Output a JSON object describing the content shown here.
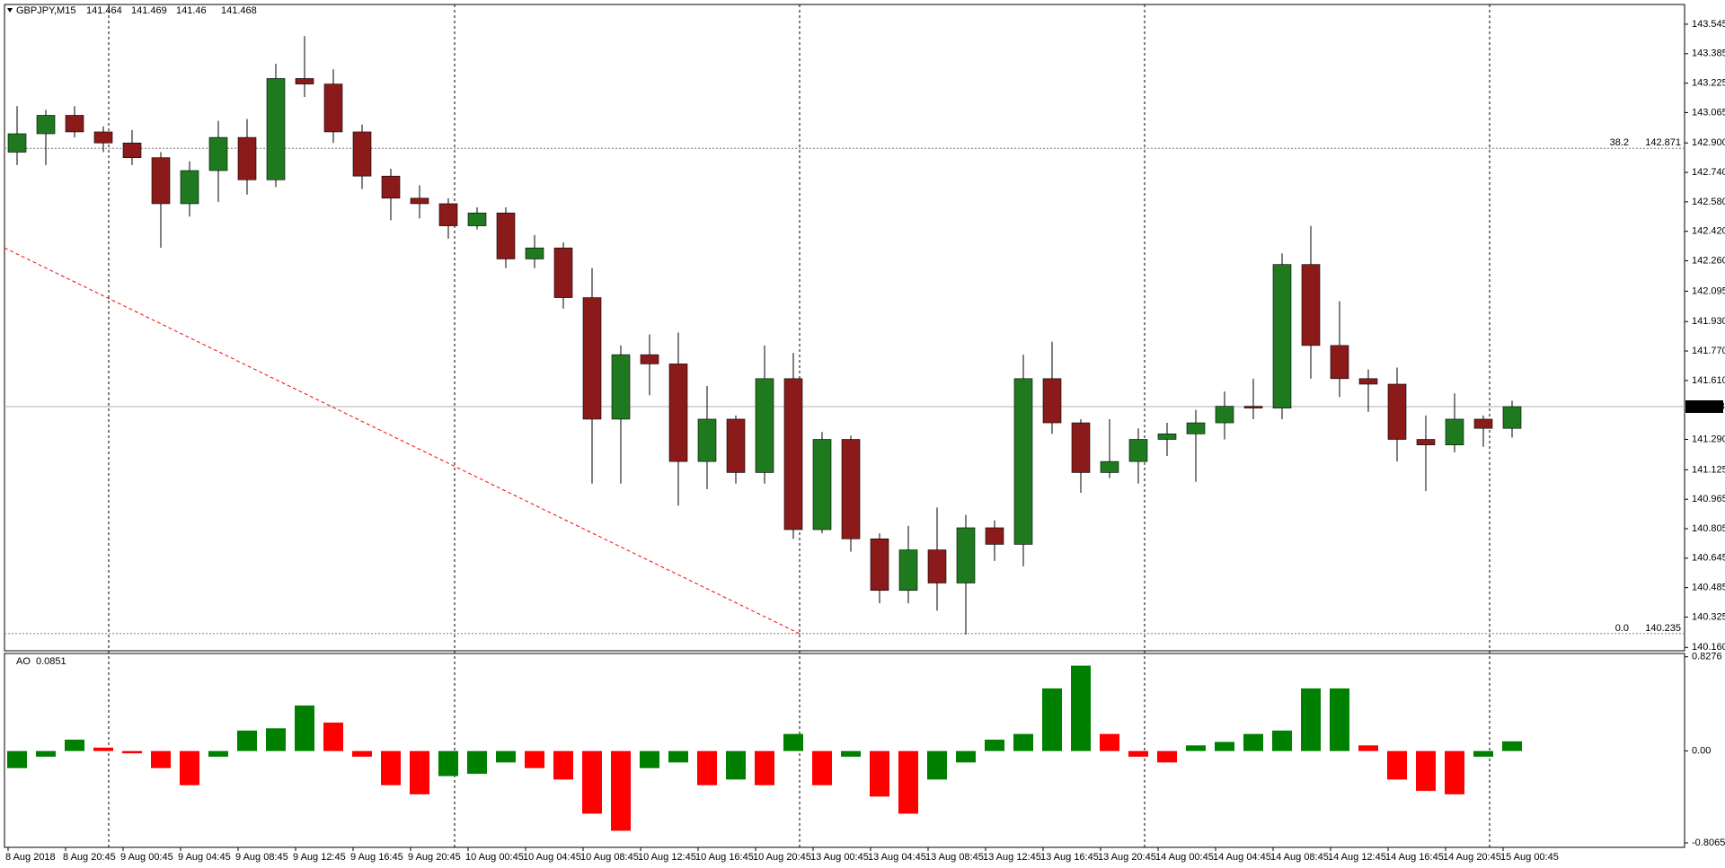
{
  "chart_data": [
    {
      "type": "candlestick",
      "title": "GBPJPY,M15",
      "ohlc": [
        141.464,
        141.469,
        141.46,
        141.468
      ],
      "categories": [
        "8 Aug 2018",
        null,
        "8 Aug 20:45",
        null,
        "9 Aug 00:45",
        null,
        "9 Aug 04:45",
        null,
        "9 Aug 08:45",
        null,
        "9 Aug 12:45",
        null,
        "9 Aug 16:45",
        null,
        "9 Aug 20:45",
        null,
        "10 Aug 00:45",
        null,
        "10 Aug 04:45",
        null,
        "10 Aug 08:45",
        null,
        "10 Aug 12:45",
        null,
        "10 Aug 16:45",
        null,
        "10 Aug 20:45",
        null,
        "13 Aug 00:45",
        null,
        "13 Aug 04:45",
        null,
        "13 Aug 08:45",
        null,
        "13 Aug 12:45",
        null,
        "13 Aug 16:45",
        null,
        "13 Aug 20:45",
        null,
        "14 Aug 00:45",
        null,
        "14 Aug 04:45",
        null,
        "14 Aug 08:45",
        null,
        "14 Aug 12:45",
        null,
        "14 Aug 16:45",
        null,
        "14 Aug 20:45",
        null,
        "15 Aug 00:45"
      ],
      "open": [
        142.85,
        142.95,
        143.05,
        142.96,
        142.9,
        142.82,
        142.57,
        142.75,
        142.93,
        142.7,
        143.25,
        143.22,
        142.96,
        142.72,
        142.6,
        142.57,
        142.45,
        142.52,
        142.27,
        142.33,
        142.06,
        141.4,
        141.75,
        141.7,
        141.17,
        141.4,
        141.11,
        141.62,
        140.8,
        141.29,
        140.75,
        140.47,
        140.69,
        140.51,
        140.81,
        140.72,
        141.62,
        141.38,
        141.11,
        141.17,
        141.29,
        141.32,
        141.38,
        141.47,
        141.46,
        142.24,
        141.8,
        141.62,
        141.59,
        141.29,
        141.26,
        141.4,
        141.35
      ],
      "high": [
        143.1,
        143.08,
        143.1,
        142.99,
        142.97,
        142.85,
        142.8,
        143.02,
        143.03,
        143.33,
        143.48,
        143.3,
        143.0,
        142.76,
        142.67,
        142.6,
        142.55,
        142.55,
        142.4,
        142.36,
        142.22,
        141.8,
        141.86,
        141.87,
        141.58,
        141.42,
        141.8,
        141.76,
        141.33,
        141.31,
        140.78,
        140.82,
        140.92,
        140.88,
        140.85,
        141.75,
        141.82,
        141.4,
        141.4,
        141.35,
        141.38,
        141.45,
        141.55,
        141.62,
        142.3,
        142.45,
        142.04,
        141.67,
        141.68,
        141.42,
        141.54,
        141.42,
        141.5
      ],
      "low": [
        142.78,
        142.78,
        142.93,
        142.85,
        142.78,
        142.33,
        142.5,
        142.58,
        142.62,
        142.66,
        143.15,
        142.9,
        142.65,
        142.48,
        142.49,
        142.38,
        142.43,
        142.22,
        142.22,
        142.0,
        141.05,
        141.05,
        141.53,
        140.93,
        141.02,
        141.05,
        141.05,
        140.75,
        140.78,
        140.68,
        140.4,
        140.4,
        140.36,
        140.23,
        140.63,
        140.6,
        141.32,
        141.0,
        141.08,
        141.05,
        141.2,
        141.06,
        141.29,
        141.4,
        141.4,
        141.62,
        141.52,
        141.44,
        141.17,
        141.01,
        141.22,
        141.25,
        141.3
      ],
      "close": [
        142.95,
        143.05,
        142.96,
        142.9,
        142.82,
        142.57,
        142.75,
        142.93,
        142.7,
        143.25,
        143.22,
        142.96,
        142.72,
        142.6,
        142.57,
        142.45,
        142.52,
        142.27,
        142.33,
        142.06,
        141.4,
        141.75,
        141.7,
        141.17,
        141.4,
        141.11,
        141.62,
        140.8,
        141.29,
        140.75,
        140.47,
        140.69,
        140.51,
        140.81,
        140.72,
        141.62,
        141.38,
        141.11,
        141.17,
        141.29,
        141.32,
        141.38,
        141.47,
        141.46,
        142.24,
        141.8,
        141.62,
        141.59,
        141.29,
        141.26,
        141.4,
        141.35,
        141.468
      ],
      "up_color": "#1f7a1f",
      "down_color": "#8b1a1a",
      "ylim": [
        140.142,
        143.652
      ],
      "yticks": [
        143.545,
        143.385,
        143.225,
        143.065,
        {
          "value": 142.9,
          "label": "142.900"
        },
        {
          "value": 142.74,
          "label": "142.740"
        },
        {
          "value": 142.58,
          "label": "142.580"
        },
        {
          "value": 142.42,
          "label": "142.420"
        },
        {
          "value": 142.26,
          "label": "142.260"
        },
        142.095,
        {
          "value": 141.93,
          "label": "141.930"
        },
        {
          "value": 141.77,
          "label": "141.770"
        },
        {
          "value": 141.61,
          "label": "141.610"
        },
        {
          "value": 141.29,
          "label": "141.290"
        },
        141.125,
        140.965,
        140.805,
        140.645,
        140.485,
        140.325,
        {
          "value": 140.16,
          "label": "140.160"
        }
      ],
      "current_price": 141.468,
      "fibo": [
        {
          "level": "38.2",
          "value": 142.871
        },
        {
          "level": "0.0",
          "value": 140.235
        }
      ],
      "trendline": [
        142.33,
        140.235
      ]
    },
    {
      "type": "bar",
      "title": "AO",
      "last_value": 0.0851,
      "values": [
        -0.15,
        -0.05,
        0.1,
        0.03,
        -0.02,
        -0.15,
        -0.3,
        -0.05,
        0.18,
        0.2,
        0.4,
        0.25,
        -0.05,
        -0.3,
        -0.38,
        -0.22,
        -0.2,
        -0.1,
        -0.15,
        -0.25,
        -0.55,
        -0.7,
        -0.15,
        -0.1,
        -0.3,
        -0.25,
        -0.3,
        0.15,
        -0.3,
        -0.05,
        -0.4,
        -0.55,
        -0.25,
        -0.1,
        0.1,
        0.15,
        0.55,
        0.75,
        0.15,
        -0.05,
        -0.1,
        0.05,
        0.08,
        0.15,
        0.18,
        0.55,
        0.55,
        0.05,
        -0.25,
        -0.35,
        -0.38,
        -0.05,
        0.0851
      ],
      "up_color": "#008000",
      "down_color": "#ff0000",
      "ylim": [
        -0.846,
        0.857
      ],
      "yticks": [
        0.8276,
        {
          "value": 0,
          "label": "0.00"
        },
        -0.8065
      ]
    }
  ]
}
